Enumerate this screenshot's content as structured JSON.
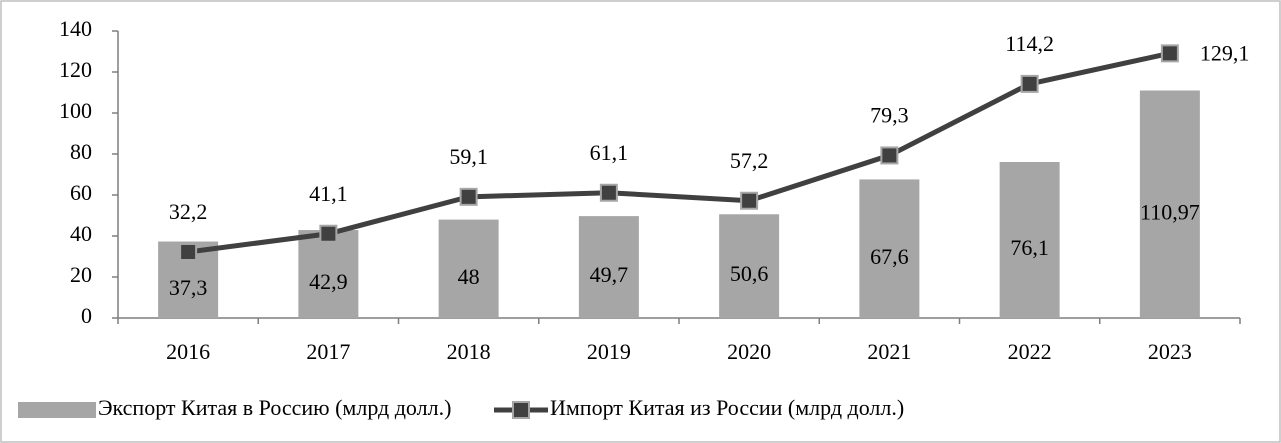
{
  "chart_data": {
    "type": "bar",
    "categories": [
      "2016",
      "2017",
      "2018",
      "2019",
      "2020",
      "2021",
      "2022",
      "2023"
    ],
    "series": [
      {
        "name": "Экспорт Китая в Россию (млрд долл.)",
        "type": "bar",
        "color": "#a6a6a6",
        "values": [
          37.3,
          42.9,
          48,
          49.7,
          50.6,
          67.6,
          76.1,
          110.97
        ],
        "value_labels": [
          "37,3",
          "42,9",
          "48",
          "49,7",
          "50,6",
          "67,6",
          "76,1",
          "110,97"
        ]
      },
      {
        "name": "Импорт Китая из России (млрд долл.)",
        "type": "line",
        "color": "#404040",
        "values": [
          32.2,
          41.1,
          59.1,
          61.1,
          57.2,
          79.3,
          114.2,
          129.1
        ],
        "value_labels": [
          "32,2",
          "41,1",
          "59,1",
          "61,1",
          "57,2",
          "79,3",
          "114,2",
          "129,1"
        ]
      }
    ],
    "ylim": [
      0,
      140
    ],
    "yticks": [
      0,
      20,
      40,
      60,
      80,
      100,
      120,
      140
    ],
    "legend": "bottom"
  }
}
